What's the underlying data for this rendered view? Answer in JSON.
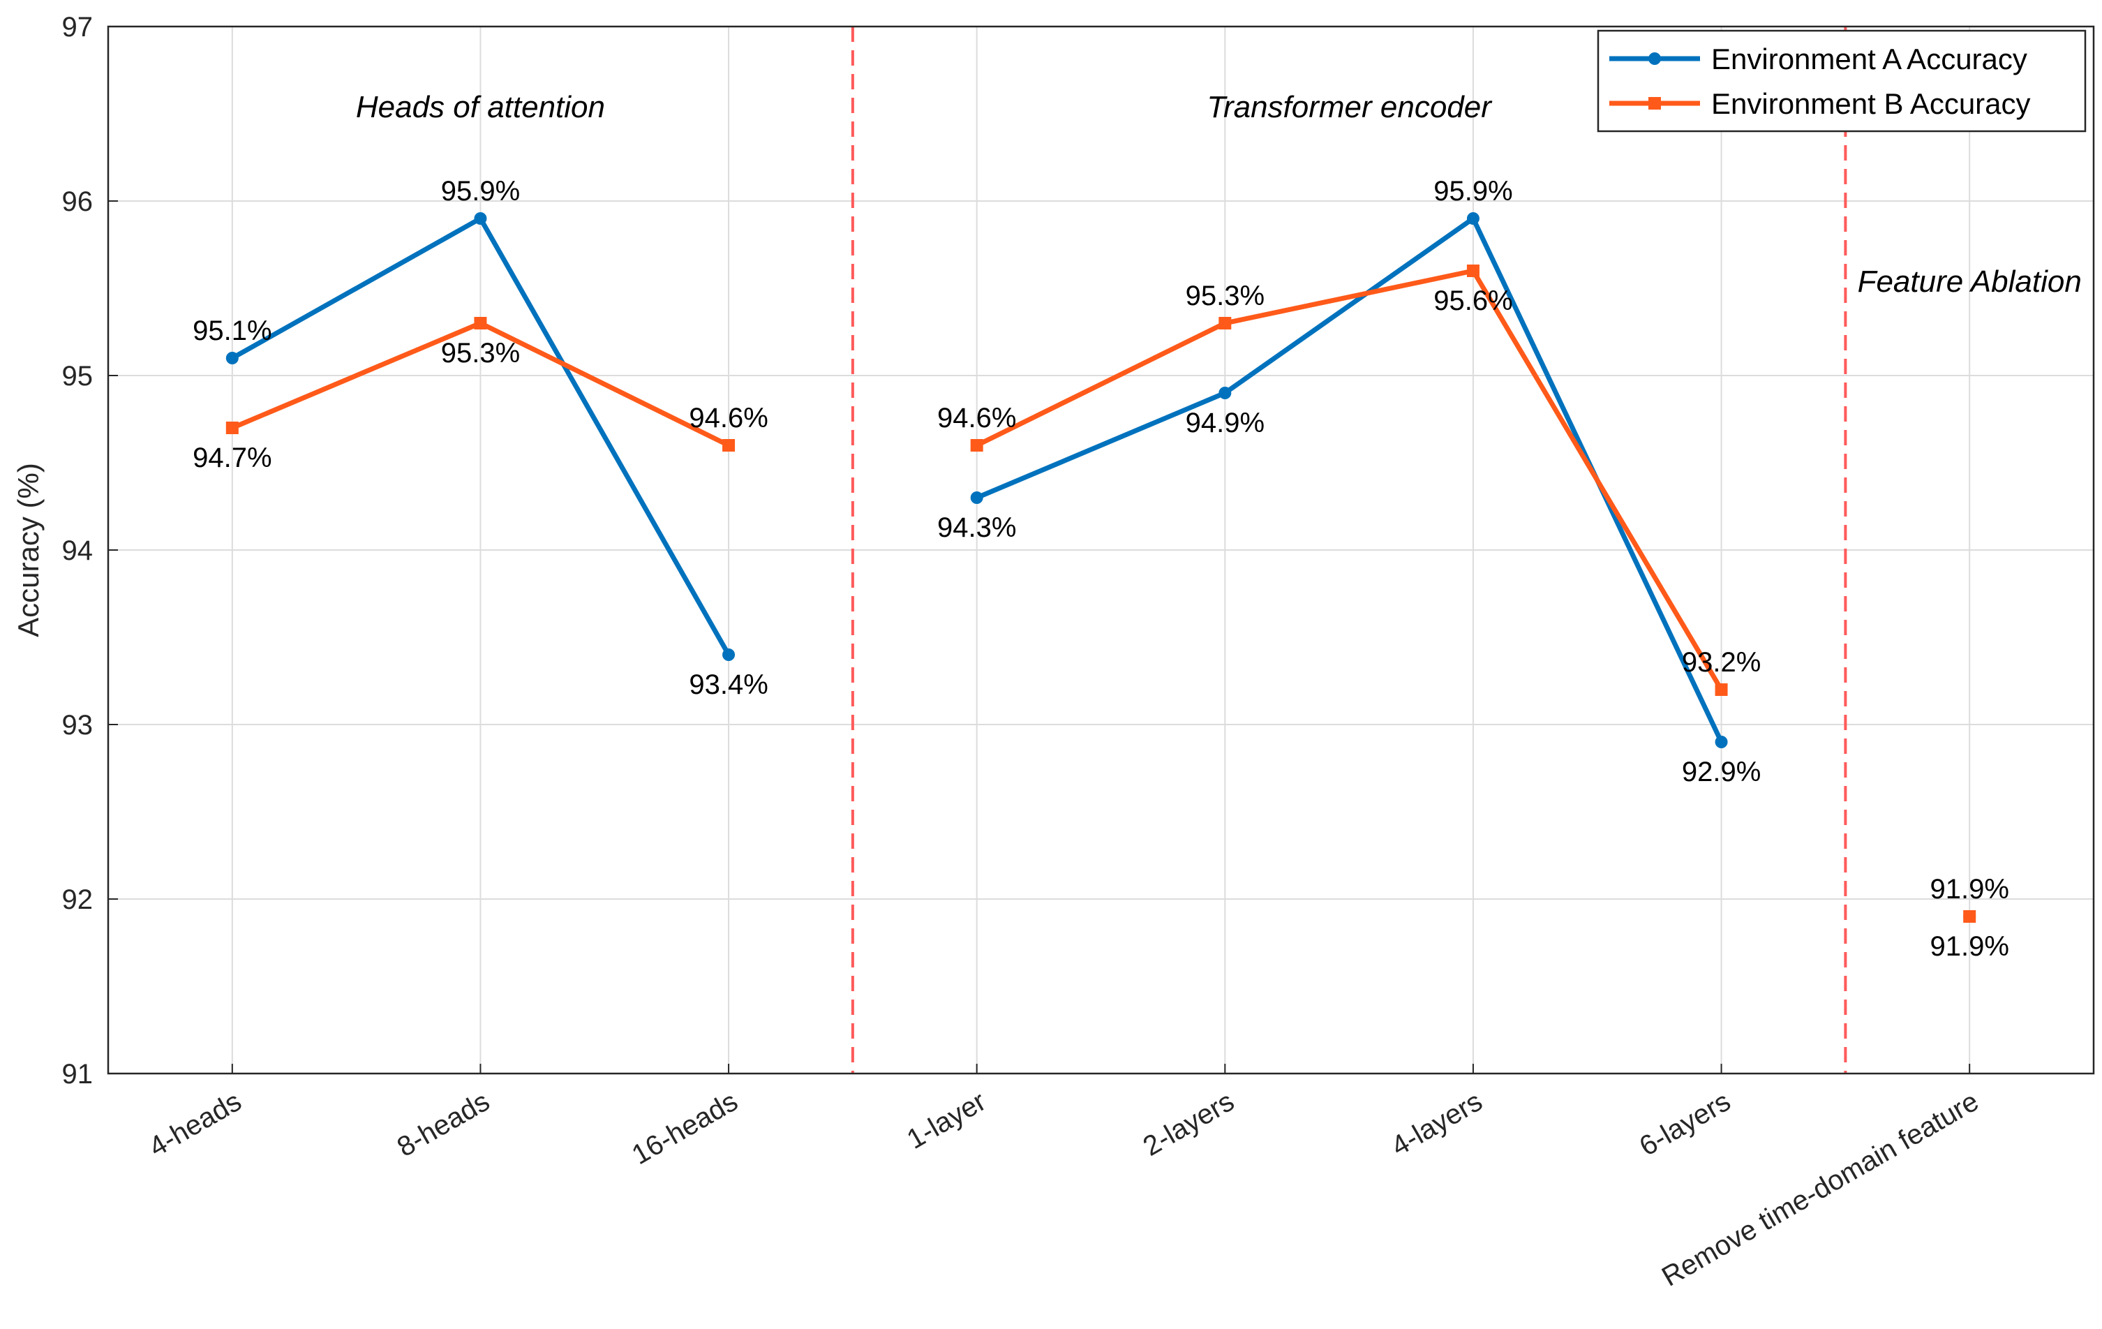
{
  "chart_data": {
    "type": "line",
    "categories": [
      "4-heads",
      "8-heads",
      "16-heads",
      "1-layer",
      "2-layers",
      "4-layers",
      "6-layers",
      "Remove time-domain feature"
    ],
    "series": [
      {
        "name": "Environment A Accuracy",
        "color": "#0072BD",
        "marker": "circle",
        "values": [
          95.1,
          95.9,
          93.4,
          94.3,
          94.9,
          95.9,
          92.9,
          91.9
        ],
        "labels": [
          "95.1%",
          "95.9%",
          "93.4%",
          "94.3%",
          "94.9%",
          "95.9%",
          "92.9%",
          "91.9%"
        ]
      },
      {
        "name": "Environment B Accuracy",
        "color": "#FF5A1A",
        "marker": "square",
        "values": [
          94.7,
          95.3,
          94.6,
          94.6,
          95.3,
          95.6,
          93.2,
          91.9
        ],
        "labels": [
          "94.7%",
          "95.3%",
          "94.6%",
          "94.6%",
          "95.3%",
          "95.6%",
          "93.2%",
          "91.9%"
        ]
      }
    ],
    "line_breaks_after": [
      2,
      6
    ],
    "group_labels": [
      "Heads of attention",
      "Transformer encoder",
      "Feature Ablation"
    ],
    "group_separators_after": [
      2,
      6
    ],
    "separator_color": "#FF5A5A",
    "ylabel": "Accuracy (%)",
    "xlabel": "",
    "title": "",
    "ylim": [
      91,
      97
    ],
    "yticks": [
      91,
      92,
      93,
      94,
      95,
      96,
      97
    ],
    "grid": true,
    "legend": "top-right"
  }
}
